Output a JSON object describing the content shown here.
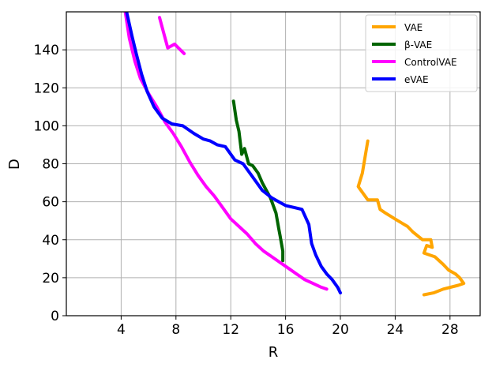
{
  "chart_data": {
    "type": "line",
    "xlabel": "R",
    "ylabel": "D",
    "xlim": [
      0,
      30.2
    ],
    "ylim": [
      0,
      160
    ],
    "xticks": [
      4,
      8,
      12,
      16,
      20,
      24,
      28
    ],
    "yticks": [
      0,
      20,
      40,
      60,
      80,
      100,
      120,
      140
    ],
    "grid": true,
    "legend_position": "top-right",
    "series": [
      {
        "name": "VAE",
        "color": "#ffa500",
        "x": [
          22.0,
          21.6,
          21.3,
          21.4,
          22.0,
          22.7,
          22.9,
          23.3,
          24.2,
          24.9,
          25.3,
          26.0,
          26.6,
          26.7,
          26.3,
          26.1,
          26.9,
          27.5,
          27.9,
          28.4,
          28.7,
          29.0,
          28.6,
          27.5,
          26.8,
          26.1
        ],
        "y": [
          92,
          75,
          68,
          67,
          61,
          61,
          56,
          54,
          50,
          47,
          44,
          40,
          40,
          36,
          37,
          33,
          31,
          27,
          24,
          22,
          20,
          17,
          16,
          14,
          12,
          11
        ]
      },
      {
        "name": "β-VAE",
        "color": "#006400",
        "x": [
          12.2,
          12.4,
          12.6,
          12.8,
          13.0,
          13.3,
          13.6,
          14.0,
          14.3,
          14.6,
          14.9,
          15.1,
          15.3,
          15.4,
          15.5,
          15.6,
          15.7,
          15.8,
          15.8
        ],
        "y": [
          113,
          103,
          97,
          85,
          88,
          80,
          79,
          75,
          70,
          66,
          62,
          58,
          54,
          50,
          46,
          42,
          38,
          34,
          29
        ]
      },
      {
        "name": "ControlVAE",
        "color": "#ff00ff",
        "x": [
          4.3,
          4.6,
          5.0,
          5.4,
          6.0,
          6.6,
          7.2,
          7.8,
          8.4,
          9.0,
          9.6,
          10.2,
          10.8,
          11.4,
          12.0,
          12.6,
          13.2,
          13.8,
          14.4,
          15.0,
          15.6,
          16.2,
          16.8,
          17.4,
          18.0,
          18.6,
          19.0
        ],
        "y": [
          160,
          146,
          134,
          125,
          117,
          110,
          102,
          96,
          89,
          81,
          74,
          68,
          63,
          57,
          51,
          47,
          43,
          38,
          34,
          31,
          28,
          25,
          22,
          19,
          17,
          15,
          14
        ]
      },
      {
        "name": "",
        "color": "#ff00ff",
        "x": [
          6.8,
          7.4,
          7.9,
          8.6
        ],
        "y": [
          157,
          141,
          143,
          138
        ]
      },
      {
        "name": "eVAE",
        "color": "#0000ff",
        "x": [
          4.4,
          4.8,
          5.1,
          5.5,
          5.9,
          6.4,
          7.0,
          7.7,
          8.5,
          9.3,
          10.0,
          10.5,
          11.0,
          11.6,
          12.3,
          12.9,
          13.6,
          14.3,
          15.0,
          15.5,
          16.0,
          16.6,
          17.2,
          17.7,
          17.9,
          18.2,
          18.6,
          19.0,
          19.4,
          19.8,
          20.0
        ],
        "y": [
          160,
          147,
          138,
          127,
          118,
          110,
          104,
          101,
          100,
          96,
          93,
          92,
          90,
          89,
          82,
          80,
          73,
          66,
          62,
          60,
          58,
          57,
          56,
          48,
          38,
          32,
          26,
          22,
          19,
          15,
          12
        ]
      }
    ]
  }
}
